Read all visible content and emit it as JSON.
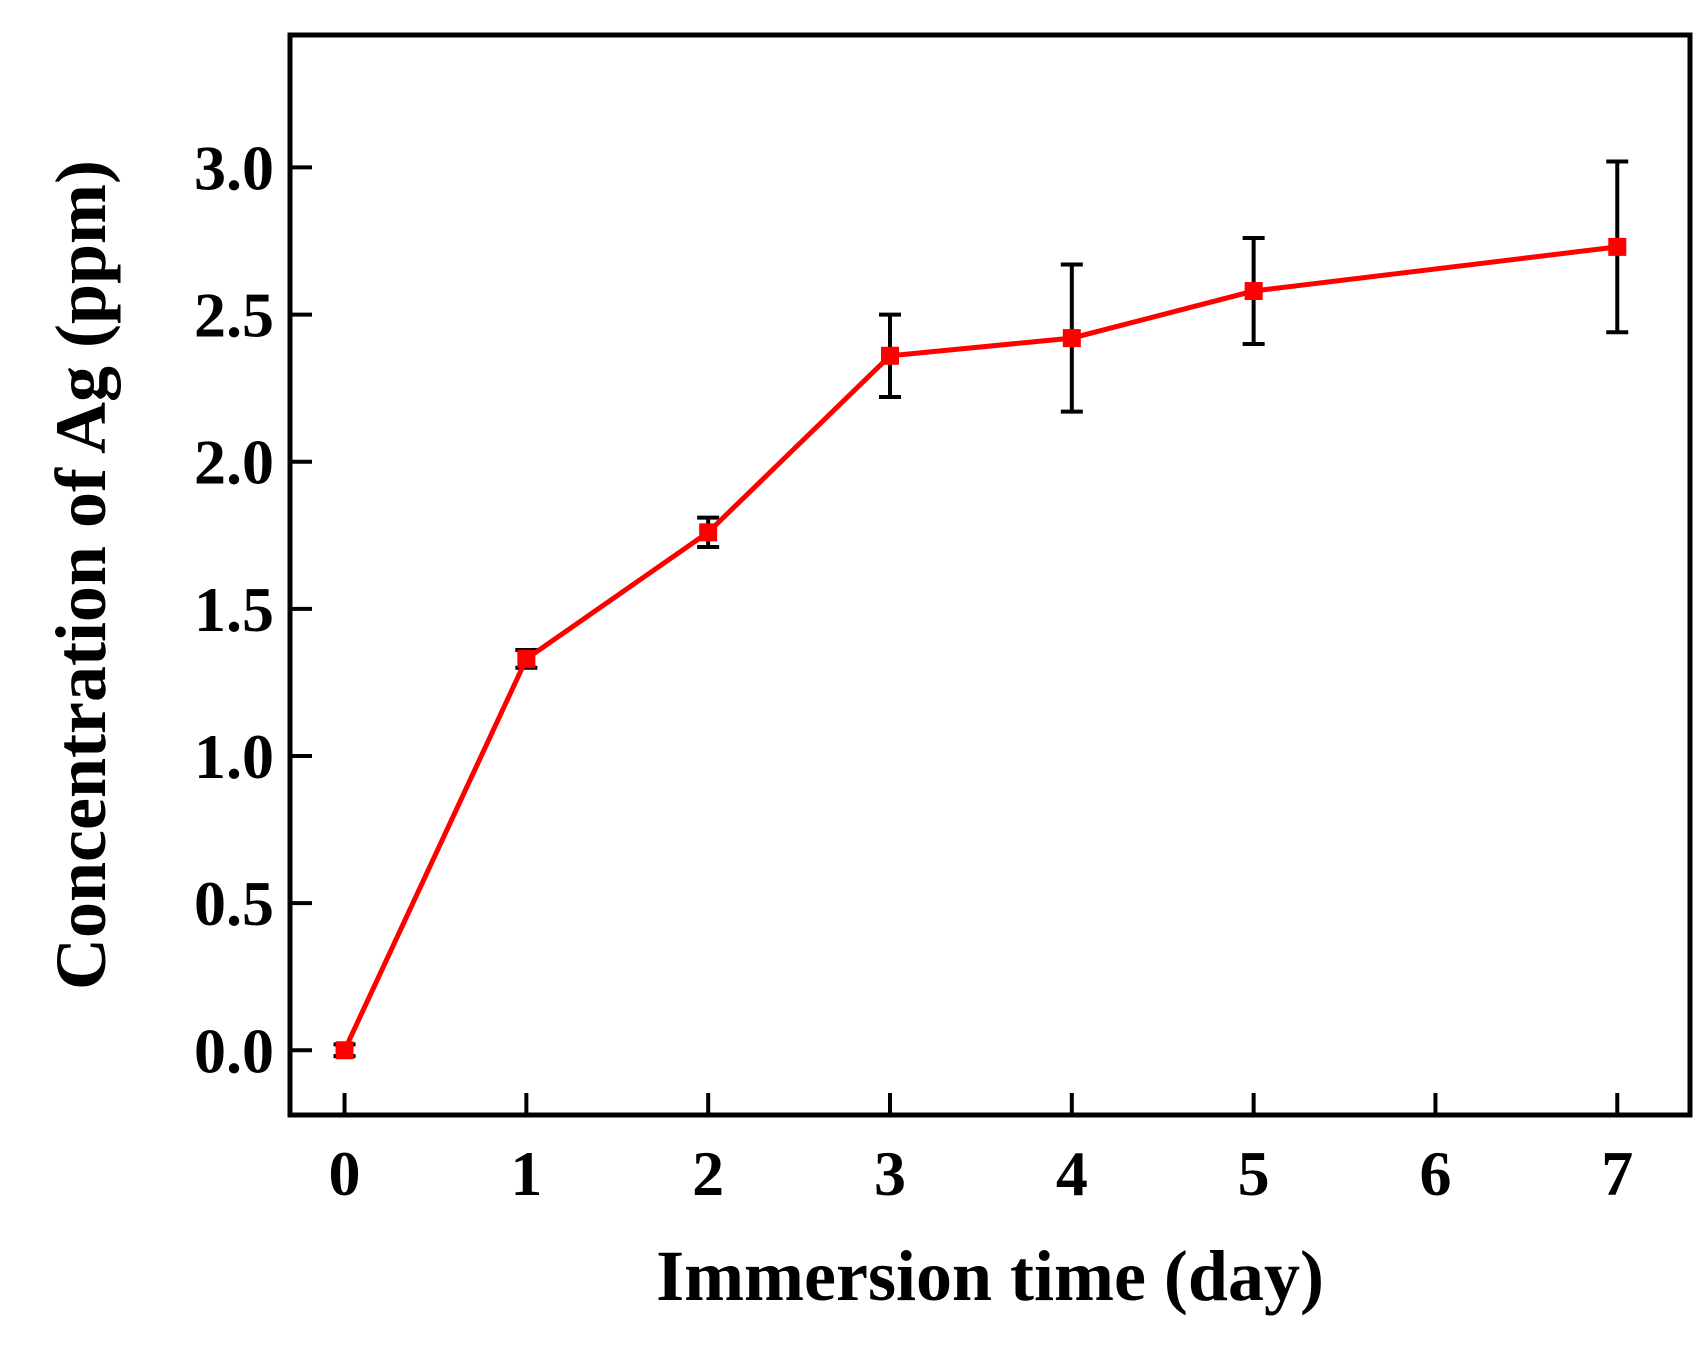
{
  "chart_data": {
    "type": "line",
    "title": "",
    "xlabel": "Immersion time (day)",
    "ylabel": "Concentration of Ag (ppm)",
    "xlim": [
      -0.3,
      7.4
    ],
    "ylim": [
      -0.22,
      3.45
    ],
    "x_ticks": [
      0,
      1,
      2,
      3,
      4,
      5,
      6,
      7
    ],
    "x_tick_labels": [
      "0",
      "1",
      "2",
      "3",
      "4",
      "5",
      "6",
      "7"
    ],
    "y_ticks": [
      0.0,
      0.5,
      1.0,
      1.5,
      2.0,
      2.5,
      3.0
    ],
    "y_tick_labels": [
      "0.0",
      "0.5",
      "1.0",
      "1.5",
      "2.0",
      "2.5",
      "3.0"
    ],
    "grid": false,
    "legend": "none",
    "series": [
      {
        "x": [
          0,
          1,
          2,
          3,
          4,
          5,
          7
        ],
        "y": [
          0.0,
          1.33,
          1.76,
          2.36,
          2.42,
          2.58,
          2.73
        ],
        "error": [
          0.02,
          0.03,
          0.05,
          0.14,
          0.25,
          0.18,
          0.29
        ],
        "color": "#ff0000",
        "marker": "square",
        "error_color": "#000000"
      }
    ]
  }
}
